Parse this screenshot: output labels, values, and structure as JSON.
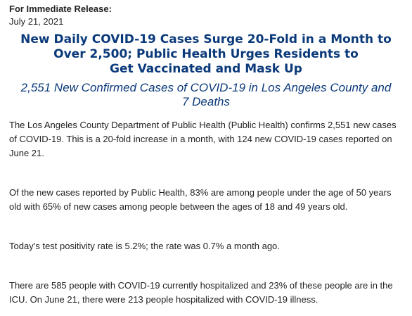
{
  "header": {
    "label": "For Immediate Release:",
    "date": "July 21, 2021"
  },
  "title_lines": [
    "New Daily COVID-19 Cases Surge 20-Fold in a Month to",
    "Over 2,500; Public Health Urges Residents to",
    "Get Vaccinated and Mask Up"
  ],
  "subtitle": "2,551 New Confirmed Cases of COVID-19 in Los Angeles County and 7 Deaths",
  "paragraphs": [
    "The Los Angeles County Department of Public Health (Public Health) confirms 2,551 new cases of COVID-19. This is a 20-fold increase in a month, with 124 new COVID-19 cases reported on June 21.",
    "Of the new cases reported by Public Health, 83% are among people under the age of 50 years old with 65% of new cases among people between the ages of 18 and 49 years old.",
    "Today’s test positivity rate is 5.2%; the rate was 0.7% a month ago.",
    "There are 585 people with COVID-19 currently hospitalized and 23% of these people are in the ICU. On June 21, there were 213 people hospitalized with COVID-19 illness."
  ]
}
